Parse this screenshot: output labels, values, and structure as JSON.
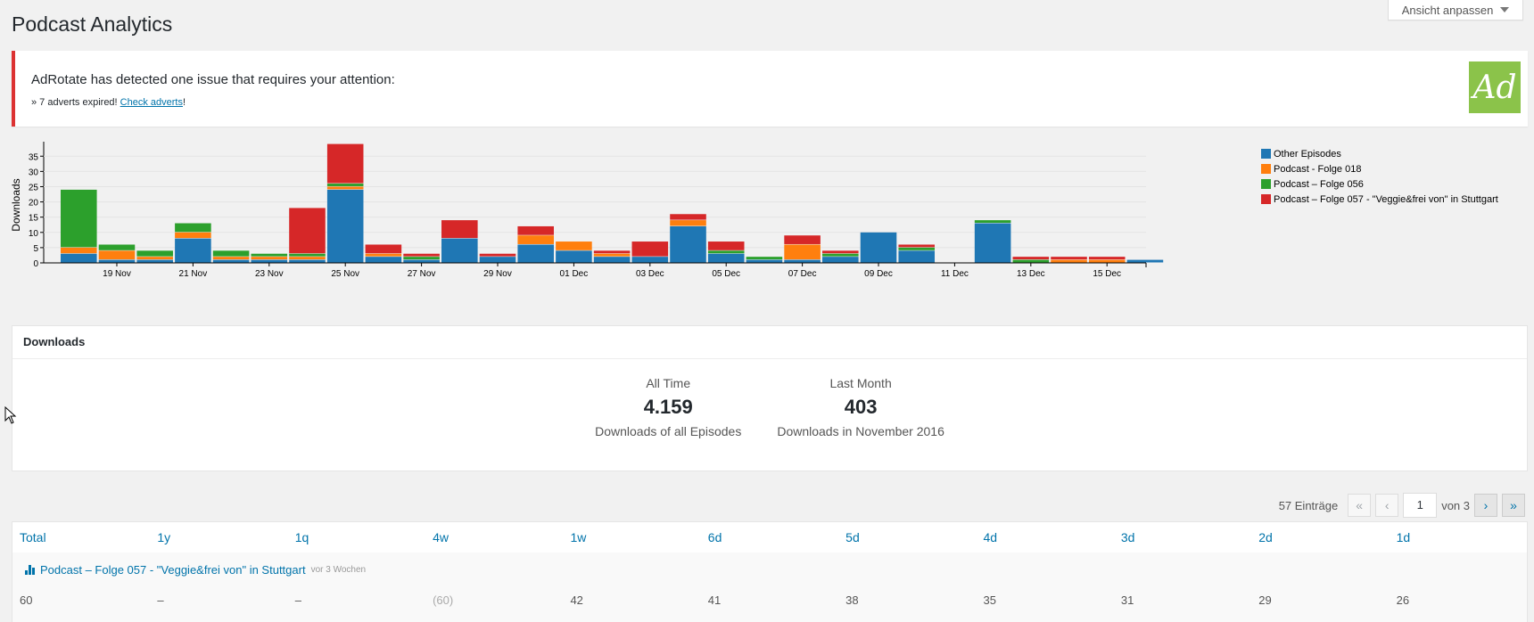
{
  "page": {
    "title": "Podcast Analytics",
    "screen_options_label": "Ansicht anpassen"
  },
  "notice": {
    "message": "AdRotate has detected one issue that requires your attention:",
    "prefix": "» 7 adverts expired! ",
    "link": "Check adverts",
    "suffix": "!",
    "logo_text": "Ad",
    "accent_color": "#dc3232",
    "logo_color": "#8bc34a"
  },
  "chart_data": {
    "type": "bar",
    "stacked": true,
    "ylabel": "Downloads",
    "ylim": [
      0,
      38
    ],
    "yticks": [
      0,
      5,
      10,
      15,
      20,
      25,
      30,
      35
    ],
    "x_tick_labels": [
      "19 Nov",
      "21 Nov",
      "23 Nov",
      "25 Nov",
      "27 Nov",
      "29 Nov",
      "01 Dec",
      "03 Dec",
      "05 Dec",
      "07 Dec",
      "09 Dec",
      "11 Dec",
      "13 Dec",
      "15 Dec"
    ],
    "categories": [
      "18 Nov",
      "19 Nov",
      "20 Nov",
      "21 Nov",
      "22 Nov",
      "23 Nov",
      "24 Nov",
      "25 Nov",
      "26 Nov",
      "27 Nov",
      "28 Nov",
      "29 Nov",
      "30 Nov",
      "01 Dec",
      "02 Dec",
      "03 Dec",
      "04 Dec",
      "05 Dec",
      "06 Dec",
      "07 Dec",
      "08 Dec",
      "09 Dec",
      "10 Dec",
      "11 Dec",
      "12 Dec",
      "13 Dec",
      "14 Dec",
      "15 Dec",
      "16 Dec"
    ],
    "series": [
      {
        "name": "Other Episodes",
        "color": "#1f77b4",
        "values": [
          3,
          1,
          1,
          8,
          1,
          1,
          1,
          24,
          2,
          1,
          8,
          2,
          6,
          4,
          2,
          2,
          12,
          3,
          1,
          1,
          2,
          10,
          4,
          0,
          13,
          0,
          0,
          0,
          1
        ]
      },
      {
        "name": "Podcast - Folge 018",
        "color": "#ff7f0e",
        "values": [
          2,
          3,
          1,
          2,
          1,
          1,
          1,
          1,
          1,
          0,
          0,
          0,
          3,
          3,
          1,
          0,
          2,
          0,
          0,
          5,
          0,
          0,
          0,
          0,
          0,
          0,
          1,
          1,
          0
        ]
      },
      {
        "name": "Podcast – Folge 056",
        "color": "#2ca02c",
        "values": [
          19,
          2,
          2,
          3,
          2,
          1,
          1,
          1,
          0,
          1,
          0,
          0,
          0,
          0,
          0,
          0,
          0,
          1,
          1,
          0,
          1,
          0,
          1,
          0,
          1,
          1,
          0,
          0,
          0
        ]
      },
      {
        "name": "Podcast – Folge 057 - \"Veggie&frei von\" in Stuttgart",
        "color": "#d62728",
        "values": [
          0,
          0,
          0,
          0,
          0,
          0,
          15,
          13,
          3,
          1,
          6,
          1,
          3,
          0,
          1,
          5,
          2,
          3,
          0,
          3,
          1,
          0,
          1,
          0,
          0,
          1,
          1,
          1,
          0
        ]
      }
    ],
    "legend_position": "right"
  },
  "downloads": {
    "heading": "Downloads",
    "all_time": {
      "label": "All Time",
      "value": "4.159",
      "desc": "Downloads of all Episodes"
    },
    "last_month": {
      "label": "Last Month",
      "value": "403",
      "desc": "Downloads in November 2016"
    }
  },
  "pagination": {
    "count": "57 Einträge",
    "first": "«",
    "prev": "‹",
    "current": "1",
    "of": "von 3",
    "next": "›",
    "last": "»"
  },
  "table": {
    "columns": [
      "Total",
      "1y",
      "1q",
      "4w",
      "1w",
      "6d",
      "5d",
      "4d",
      "3d",
      "2d",
      "1d"
    ],
    "episode": {
      "title": "Podcast – Folge 057 - \"Veggie&frei von\" in Stuttgart",
      "age": "vor 3 Wochen"
    },
    "row": [
      "60",
      "–",
      "–",
      "(60)",
      "42",
      "41",
      "38",
      "35",
      "31",
      "29",
      "26"
    ]
  }
}
